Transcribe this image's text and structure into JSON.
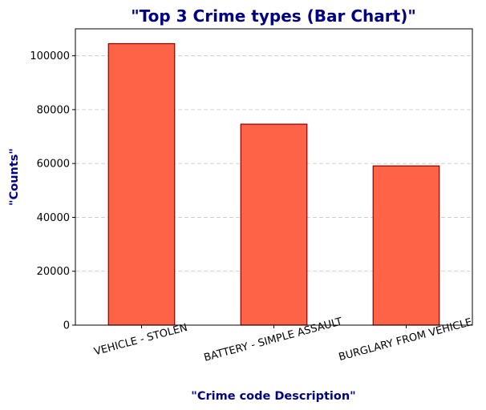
{
  "chart_data": {
    "type": "bar",
    "title": "\"Top 3 Crime types (Bar Chart)\"",
    "xlabel": "\"Crime code Description\"",
    "ylabel": "\"Counts\"",
    "categories": [
      "VEHICLE - STOLEN",
      "BATTERY - SIMPLE ASSAULT",
      "BURGLARY FROM VEHICLE"
    ],
    "values": [
      104500,
      74600,
      59100
    ],
    "ylim": [
      0,
      110000
    ],
    "yticks": [
      0,
      20000,
      40000,
      60000,
      80000,
      100000
    ],
    "ytick_labels": [
      "0",
      "20000",
      "40000",
      "60000",
      "80000",
      "100000"
    ],
    "grid": "y-dashed",
    "colors": {
      "bar_fill": "#ff6347",
      "bar_edge": "#8b0000",
      "title": "#000080",
      "axis_label": "#000080",
      "grid": "#cccccc"
    }
  }
}
